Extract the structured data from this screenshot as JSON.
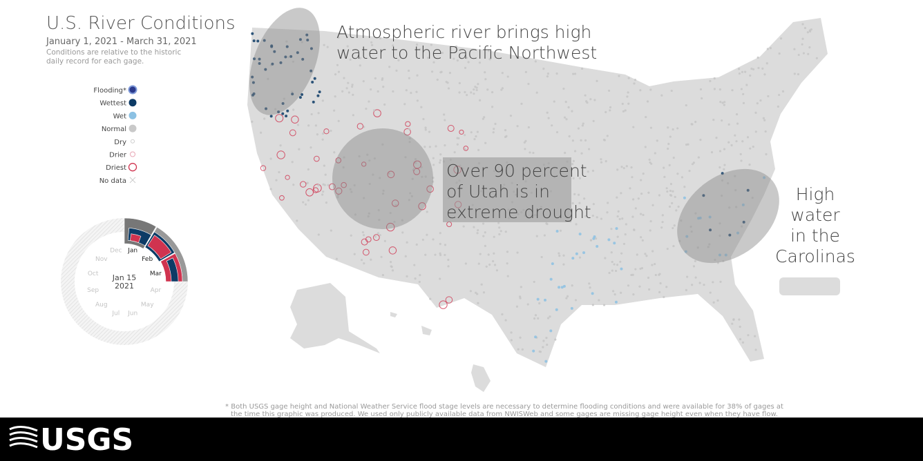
{
  "header": {
    "title": "U.S. River Conditions",
    "dates": "January 1, 2021 - March 31, 2021",
    "note": [
      "Conditions are relative to the historic",
      "daily record for each gage."
    ]
  },
  "legend": [
    "Flooding*",
    "Wettest",
    "Wet",
    "Normal",
    "Dry",
    "Drier",
    "Driest",
    "No data"
  ],
  "clock": {
    "months": [
      "Jan",
      "Feb",
      "Mar",
      "Apr",
      "May",
      "Jun",
      "Jul",
      "Aug",
      "Sep",
      "Oct",
      "Nov",
      "Dec"
    ],
    "date": [
      "Jan 15",
      "2021"
    ]
  },
  "annotations": [
    [
      "Atmospheric river brings high",
      "water to the Pacific Northwest"
    ],
    [
      "Over 90 percent",
      "of Utah is in",
      "extreme drought"
    ],
    [
      "High",
      "water",
      "in the",
      "Carolinas"
    ]
  ],
  "footnote": [
    "* Both USGS gage height and National Weather Service flood stage levels are necessary to determine flooding conditions and were available for 38% of gages at",
    "the time this graphic was produced. We used only publicly available data from NWISWeb and some gages are missing gage height even when they have flow."
  ],
  "footer": {
    "logo": "USGS"
  }
}
